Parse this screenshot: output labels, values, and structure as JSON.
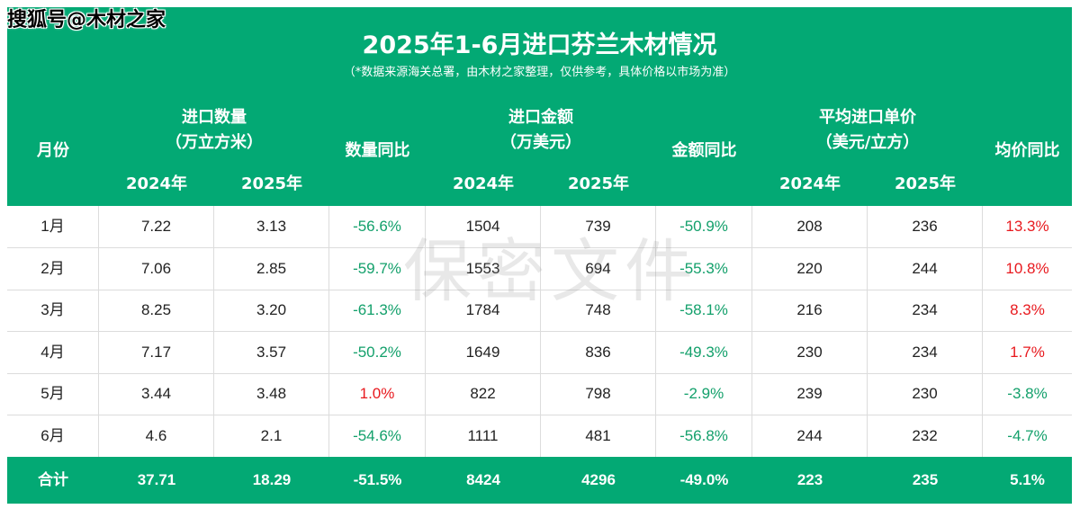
{
  "brand": "搜狐号@木材之家",
  "title": "2025年1-6月进口芬兰木材情况",
  "subtitle": "（*数据来源海关总署，由木材之家整理，仅供参考，具体价格以市场为准）",
  "headers": {
    "month": "月份",
    "quantity_line1": "进口数量",
    "quantity_line2": "（万立方米）",
    "quantity_yoy": "数量同比",
    "amount_line1": "进口金额",
    "amount_line2": "（万美元）",
    "amount_yoy": "金额同比",
    "price_line1": "平均进口单价",
    "price_line2": "（美元/立方）",
    "price_yoy": "均价同比",
    "y2024": "2024年",
    "y2025": "2025年"
  },
  "rows": [
    {
      "month": "1月",
      "q2024": "7.22",
      "q2025": "3.13",
      "qyoy": "-56.6%",
      "a2024": "1504",
      "a2025": "739",
      "ayoy": "-50.9%",
      "p2024": "208",
      "p2025": "236",
      "pyoy": "13.3%"
    },
    {
      "month": "2月",
      "q2024": "7.06",
      "q2025": "2.85",
      "qyoy": "-59.7%",
      "a2024": "1553",
      "a2025": "694",
      "ayoy": "-55.3%",
      "p2024": "220",
      "p2025": "244",
      "pyoy": "10.8%"
    },
    {
      "month": "3月",
      "q2024": "8.25",
      "q2025": "3.20",
      "qyoy": "-61.3%",
      "a2024": "1784",
      "a2025": "748",
      "ayoy": "-58.1%",
      "p2024": "216",
      "p2025": "234",
      "pyoy": "8.3%"
    },
    {
      "month": "4月",
      "q2024": "7.17",
      "q2025": "3.57",
      "qyoy": "-50.2%",
      "a2024": "1649",
      "a2025": "836",
      "ayoy": "-49.3%",
      "p2024": "230",
      "p2025": "234",
      "pyoy": "1.7%"
    },
    {
      "month": "5月",
      "q2024": "3.44",
      "q2025": "3.48",
      "qyoy": "1.0%",
      "a2024": "822",
      "a2025": "798",
      "ayoy": "-2.9%",
      "p2024": "239",
      "p2025": "230",
      "pyoy": "-3.8%"
    },
    {
      "month": "6月",
      "q2024": "4.6",
      "q2025": "2.1",
      "qyoy": "-54.6%",
      "a2024": "1111",
      "a2025": "481",
      "ayoy": "-56.8%",
      "p2024": "244",
      "p2025": "232",
      "pyoy": "-4.7%"
    }
  ],
  "total": {
    "month": "合计",
    "q2024": "37.71",
    "q2025": "18.29",
    "qyoy": "-51.5%",
    "a2024": "8424",
    "a2025": "4296",
    "ayoy": "-49.0%",
    "p2024": "223",
    "p2025": "235",
    "pyoy": "5.1%"
  },
  "watermark": "保密文件",
  "colors": {
    "header_bg": "#03a974",
    "negative": "#13a06b",
    "positive": "#e8191e"
  }
}
